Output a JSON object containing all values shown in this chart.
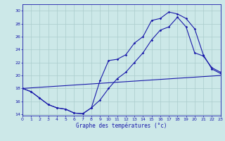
{
  "xlabel": "Graphe des températures (°c)",
  "bg_color": "#cce8e8",
  "grid_color": "#aacccc",
  "line_color": "#1a1aaa",
  "x_ticks": [
    0,
    1,
    2,
    3,
    4,
    5,
    6,
    7,
    8,
    9,
    10,
    11,
    12,
    13,
    14,
    15,
    16,
    17,
    18,
    19,
    20,
    21,
    22,
    23
  ],
  "y_ticks": [
    14,
    16,
    18,
    20,
    22,
    24,
    26,
    28,
    30
  ],
  "xlim": [
    0,
    23
  ],
  "ylim": [
    13.8,
    31.0
  ],
  "curve1_x": [
    0,
    1,
    2,
    3,
    4,
    5,
    6,
    7,
    8,
    9,
    10,
    11,
    12,
    13,
    14,
    15,
    16,
    17,
    18,
    19,
    20,
    21,
    22,
    23
  ],
  "curve1_y": [
    18.0,
    17.5,
    16.5,
    15.5,
    15.0,
    14.8,
    14.2,
    14.1,
    15.0,
    19.2,
    22.3,
    22.5,
    23.2,
    25.0,
    26.0,
    28.5,
    28.8,
    29.8,
    29.5,
    28.8,
    27.2,
    23.2,
    21.0,
    20.3
  ],
  "curve2_x": [
    0,
    1,
    2,
    3,
    4,
    5,
    6,
    7,
    8,
    9,
    10,
    11,
    12,
    13,
    14,
    15,
    16,
    17,
    18,
    19,
    20,
    21,
    22,
    23
  ],
  "curve2_y": [
    18.0,
    17.5,
    16.5,
    15.5,
    15.0,
    14.8,
    14.2,
    14.1,
    15.0,
    16.2,
    18.0,
    19.5,
    20.5,
    22.0,
    23.5,
    25.5,
    27.0,
    27.5,
    29.0,
    27.5,
    23.5,
    23.0,
    21.2,
    20.5
  ],
  "curve3_x": [
    0,
    23
  ],
  "curve3_y": [
    18.0,
    20.0
  ]
}
